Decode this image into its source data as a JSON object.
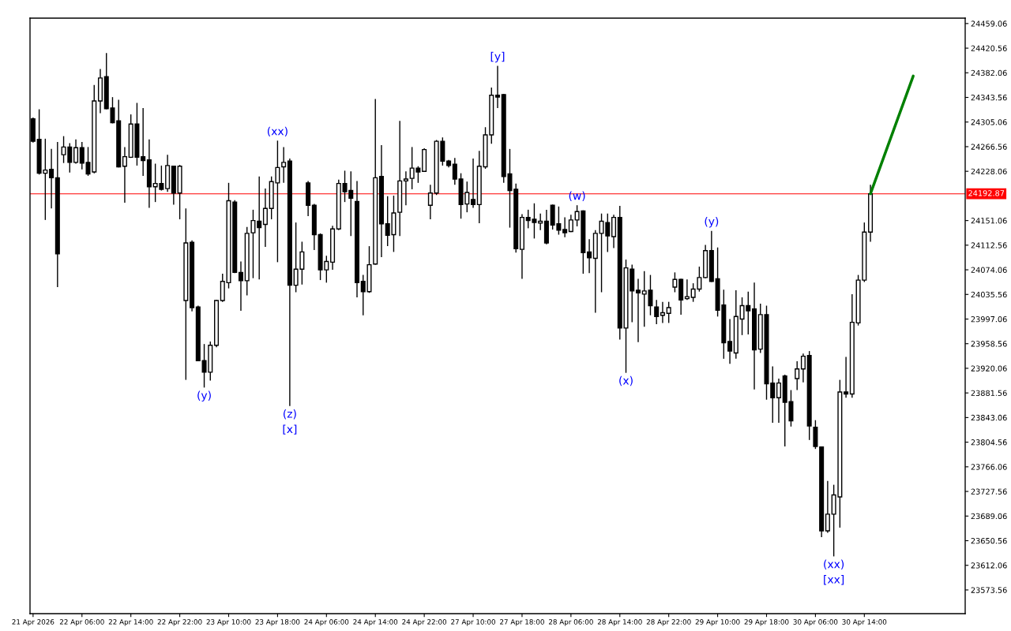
{
  "chart_data": {
    "type": "candlestick",
    "categories": [
      "21 Apr 2026",
      null,
      null,
      null,
      null,
      null,
      null,
      null,
      "22 Apr 06:00",
      null,
      null,
      null,
      null,
      null,
      null,
      null,
      "22 Apr 14:00",
      null,
      null,
      null,
      null,
      null,
      null,
      null,
      "22 Apr 22:00",
      null,
      null,
      null,
      null,
      null,
      null,
      null,
      "23 Apr 10:00",
      null,
      null,
      null,
      null,
      null,
      null,
      null,
      "23 Apr 18:00",
      null,
      null,
      null,
      null,
      null,
      null,
      null,
      "24 Apr 06:00",
      null,
      null,
      null,
      null,
      null,
      null,
      null,
      "24 Apr 14:00",
      null,
      null,
      null,
      null,
      null,
      null,
      null,
      "24 Apr 22:00",
      null,
      null,
      null,
      null,
      null,
      null,
      null,
      "27 Apr 10:00",
      null,
      null,
      null,
      null,
      null,
      null,
      null,
      "27 Apr 18:00",
      null,
      null,
      null,
      null,
      null,
      null,
      null,
      "28 Apr 06:00",
      null,
      null,
      null,
      null,
      null,
      null,
      null,
      "28 Apr 14:00",
      null,
      null,
      null,
      null,
      null,
      null,
      null,
      "28 Apr 22:00",
      null,
      null,
      null,
      null,
      null,
      null,
      null,
      "29 Apr 10:00",
      null,
      null,
      null,
      null,
      null,
      null,
      null,
      "29 Apr 18:00",
      null,
      null,
      null,
      null,
      null,
      null,
      null,
      "30 Apr 06:00",
      null,
      null,
      null,
      null,
      null,
      null,
      null,
      "30 Apr 14:00",
      null,
      null,
      null,
      null,
      null,
      null,
      null,
      null,
      null,
      null,
      null,
      null,
      null,
      null,
      null,
      null
    ],
    "ohlc": [
      [
        24310,
        24312,
        24273,
        24275
      ],
      [
        24278,
        24325,
        24223,
        24225
      ],
      [
        24225,
        24279,
        24152,
        24230
      ],
      [
        24231,
        24263,
        24170,
        24218
      ],
      [
        24218,
        24274,
        24047,
        24099
      ],
      [
        24254,
        24283,
        24241,
        24266
      ],
      [
        24266,
        24272,
        24226,
        24242
      ],
      [
        24242,
        24278,
        24240,
        24265
      ],
      [
        24265,
        24274,
        24231,
        24241
      ],
      [
        24242,
        24266,
        24221,
        24224
      ],
      [
        24227,
        24363,
        24225,
        24338
      ],
      [
        24338,
        24388,
        24319,
        24374
      ],
      [
        24376,
        24413,
        24325,
        24326
      ],
      [
        24327,
        24344,
        24303,
        24304
      ],
      [
        24307,
        24340,
        24234,
        24235
      ],
      [
        24236,
        24266,
        24179,
        24251
      ],
      [
        24250,
        24317,
        24249,
        24302
      ],
      [
        24302,
        24335,
        24237,
        24250
      ],
      [
        24251,
        24327,
        24221,
        24245
      ],
      [
        24246,
        24278,
        24171,
        24204
      ],
      [
        24204,
        24240,
        24180,
        24209
      ],
      [
        24209,
        24237,
        24198,
        24200
      ],
      [
        24201,
        24254,
        24196,
        24237
      ],
      [
        24236,
        24237,
        24176,
        24194
      ],
      [
        24194,
        24238,
        24153,
        24236
      ],
      [
        24026,
        24170,
        23902,
        24116
      ],
      [
        24117,
        24120,
        24009,
        24015
      ],
      [
        24016,
        24018,
        23932,
        23932
      ],
      [
        23932,
        23958,
        23890,
        23914
      ],
      [
        23914,
        23962,
        23901,
        23956
      ],
      [
        23956,
        24027,
        23953,
        24026
      ],
      [
        24026,
        24068,
        24024,
        24056
      ],
      [
        24054,
        24210,
        24045,
        24182
      ],
      [
        24180,
        24183,
        24069,
        24070
      ],
      [
        24070,
        24087,
        24010,
        24057
      ],
      [
        24057,
        24141,
        24034,
        24131
      ],
      [
        24132,
        24168,
        24061,
        24151
      ],
      [
        24150,
        24220,
        24059,
        24140
      ],
      [
        24145,
        24201,
        24110,
        24170
      ],
      [
        24170,
        24220,
        24153,
        24212
      ],
      [
        24210,
        24276,
        24086,
        24234
      ],
      [
        24235,
        24266,
        24210,
        24242
      ],
      [
        24244,
        24248,
        23861,
        24050
      ],
      [
        24050,
        24148,
        24039,
        24075
      ],
      [
        24075,
        24118,
        24051,
        24102
      ],
      [
        24210,
        24213,
        24158,
        24175
      ],
      [
        24175,
        24177,
        24105,
        24129
      ],
      [
        24129,
        24131,
        24058,
        24074
      ],
      [
        24074,
        24096,
        24054,
        24087
      ],
      [
        24086,
        24143,
        24074,
        24138
      ],
      [
        24138,
        24215,
        24136,
        24209
      ],
      [
        24209,
        24229,
        24180,
        24196
      ],
      [
        24198,
        24228,
        24127,
        24186
      ],
      [
        24181,
        24213,
        24031,
        24054
      ],
      [
        24056,
        24066,
        24003,
        24040
      ],
      [
        24040,
        24111,
        24038,
        24082
      ],
      [
        24083,
        24341,
        24082,
        24218
      ],
      [
        24220,
        24269,
        24094,
        24146
      ],
      [
        24146,
        24189,
        24111,
        24128
      ],
      [
        24129,
        24190,
        24102,
        24163
      ],
      [
        24164,
        24307,
        24127,
        24213
      ],
      [
        24213,
        24228,
        24175,
        24216
      ],
      [
        24217,
        24266,
        24200,
        24233
      ],
      [
        24233,
        24236,
        24210,
        24227
      ],
      [
        24228,
        24264,
        24227,
        24262
      ],
      [
        24175,
        24207,
        24153,
        24194
      ],
      [
        24194,
        24277,
        24191,
        24275
      ],
      [
        24275,
        24281,
        24237,
        24244
      ],
      [
        24244,
        24246,
        24234,
        24237
      ],
      [
        24239,
        24249,
        24207,
        24216
      ],
      [
        24216,
        24225,
        24154,
        24176
      ],
      [
        24177,
        24212,
        24164,
        24195
      ],
      [
        24184,
        24248,
        24171,
        24176
      ],
      [
        24176,
        24260,
        24147,
        24236
      ],
      [
        24235,
        24297,
        24232,
        24285
      ],
      [
        24285,
        24359,
        24271,
        24347
      ],
      [
        24347,
        24393,
        24327,
        24344
      ],
      [
        24348,
        24349,
        24210,
        24220
      ],
      [
        24224,
        24263,
        24140,
        24198
      ],
      [
        24200,
        24209,
        24101,
        24107
      ],
      [
        24106,
        24161,
        24060,
        24156
      ],
      [
        24156,
        24168,
        24139,
        24151
      ],
      [
        24153,
        24178,
        24123,
        24148
      ],
      [
        24147,
        24162,
        24136,
        24150
      ],
      [
        24150,
        24168,
        24114,
        24116
      ],
      [
        24175,
        24176,
        24137,
        24144
      ],
      [
        24146,
        24173,
        24129,
        24136
      ],
      [
        24137,
        24156,
        24125,
        24132
      ],
      [
        24134,
        24160,
        24133,
        24152
      ],
      [
        24152,
        24175,
        24142,
        24165
      ],
      [
        24166,
        24167,
        24068,
        24101
      ],
      [
        24102,
        24122,
        24069,
        24093
      ],
      [
        24092,
        24136,
        24007,
        24131
      ],
      [
        24131,
        24162,
        24039,
        24150
      ],
      [
        24148,
        24162,
        24102,
        24127
      ],
      [
        24126,
        24160,
        24108,
        24156
      ],
      [
        24156,
        24174,
        23965,
        23983
      ],
      [
        23983,
        24090,
        23913,
        24077
      ],
      [
        24075,
        24082,
        23992,
        24041
      ],
      [
        24042,
        24060,
        23961,
        24038
      ],
      [
        24036,
        24072,
        23985,
        24041
      ],
      [
        24042,
        24066,
        24003,
        24018
      ],
      [
        24016,
        24027,
        23989,
        24001
      ],
      [
        24003,
        24024,
        23991,
        24007
      ],
      [
        24006,
        24024,
        23991,
        24015
      ],
      [
        24047,
        24070,
        24039,
        24059
      ],
      [
        24059,
        24060,
        24004,
        24027
      ],
      [
        24029,
        24059,
        24027,
        24032
      ],
      [
        24031,
        24053,
        24024,
        24044
      ],
      [
        24044,
        24079,
        24040,
        24062
      ],
      [
        24062,
        24113,
        24061,
        24104
      ],
      [
        24104,
        24135,
        24055,
        24056
      ],
      [
        24060,
        24109,
        24001,
        24011
      ],
      [
        24019,
        24043,
        23935,
        23960
      ],
      [
        23962,
        23997,
        23927,
        23947
      ],
      [
        23944,
        24042,
        23935,
        24001
      ],
      [
        23997,
        24031,
        23972,
        24018
      ],
      [
        24018,
        24040,
        23973,
        24010
      ],
      [
        24013,
        24054,
        23887,
        23949
      ],
      [
        23950,
        24021,
        23944,
        24004
      ],
      [
        24004,
        24018,
        23871,
        23896
      ],
      [
        23897,
        23923,
        23835,
        23874
      ],
      [
        23874,
        23904,
        23835,
        23897
      ],
      [
        23908,
        23910,
        23798,
        23867
      ],
      [
        23868,
        23886,
        23829,
        23838
      ],
      [
        23904,
        23931,
        23886,
        23919
      ],
      [
        23919,
        23943,
        23898,
        23939
      ],
      [
        23940,
        23947,
        23808,
        23830
      ],
      [
        23828,
        23839,
        23794,
        23798
      ],
      [
        23797,
        23798,
        23656,
        23666
      ],
      [
        23666,
        23744,
        23663,
        23692
      ],
      [
        23692,
        23738,
        23626,
        23722
      ],
      [
        23719,
        23902,
        23671,
        23883
      ],
      [
        23883,
        23938,
        23874,
        23880
      ],
      [
        23880,
        24036,
        23874,
        23992
      ],
      [
        23991,
        24066,
        23987,
        24058
      ],
      [
        24058,
        24148,
        24055,
        24133
      ],
      [
        24133,
        24207,
        24118,
        24192.87
      ],
      null,
      null,
      null,
      null,
      null,
      null,
      null,
      null,
      null,
      null,
      null,
      null,
      null,
      null,
      null
    ],
    "series": [
      {
        "type": "line",
        "color": "#008000",
        "values": [
          null,
          null,
          null,
          null,
          null,
          null,
          null,
          null,
          null,
          null,
          null,
          null,
          null,
          null,
          null,
          null,
          null,
          null,
          null,
          null,
          null,
          null,
          null,
          null,
          null,
          null,
          null,
          null,
          null,
          null,
          null,
          null,
          null,
          null,
          null,
          null,
          null,
          null,
          null,
          null,
          null,
          null,
          null,
          null,
          null,
          null,
          null,
          null,
          null,
          null,
          null,
          null,
          null,
          null,
          null,
          null,
          null,
          null,
          null,
          null,
          null,
          null,
          null,
          null,
          null,
          null,
          null,
          null,
          null,
          null,
          null,
          null,
          null,
          null,
          null,
          null,
          null,
          null,
          null,
          null,
          null,
          null,
          null,
          null,
          null,
          null,
          null,
          null,
          null,
          null,
          null,
          null,
          null,
          null,
          null,
          null,
          null,
          null,
          null,
          null,
          null,
          null,
          null,
          null,
          null,
          null,
          null,
          null,
          null,
          null,
          null,
          null,
          null,
          null,
          null,
          null,
          null,
          null,
          null,
          null,
          null,
          null,
          null,
          null,
          null,
          null,
          null,
          null,
          null,
          null,
          null,
          null,
          null,
          null,
          null,
          null,
          null,
          24193,
          null,
          null,
          null,
          null,
          null,
          null,
          24377,
          null,
          null,
          null,
          null,
          null,
          null,
          null,
          null
        ]
      }
    ],
    "ylim": [
      23536.5,
      24467.5
    ],
    "yticks": [
      23573.56,
      23612.06,
      23650.56,
      23689.06,
      23727.56,
      23766.06,
      23804.56,
      23843.06,
      23881.56,
      23920.06,
      23958.56,
      23997.06,
      24035.56,
      24074.06,
      24112.56,
      24151.06,
      24228.06,
      24266.56,
      24305.06,
      24343.56,
      24382.06,
      24420.56,
      24459.06
    ],
    "ref_lines": [
      {
        "axis": "y",
        "value": 24192.87,
        "label": "24192.87",
        "color": "#ff0000"
      }
    ],
    "annotations": [
      {
        "text": "(y)",
        "y": 23890
      },
      {
        "text": "(xx)",
        "y": 24276
      },
      {
        "text": "(z)",
        "y": 23861
      },
      {
        "text": "[x]",
        "y": 23861
      },
      {
        "text": "[y]",
        "y": 24393
      },
      {
        "text": "(w)",
        "y": 24175
      },
      {
        "text": "(x)",
        "y": 23913
      },
      {
        "text": "(y)",
        "y": 24135
      },
      {
        "text": "(xx)",
        "y": 23626
      },
      {
        "text": "[xx]",
        "y": 23626
      }
    ],
    "grid": false,
    "legend": false
  }
}
